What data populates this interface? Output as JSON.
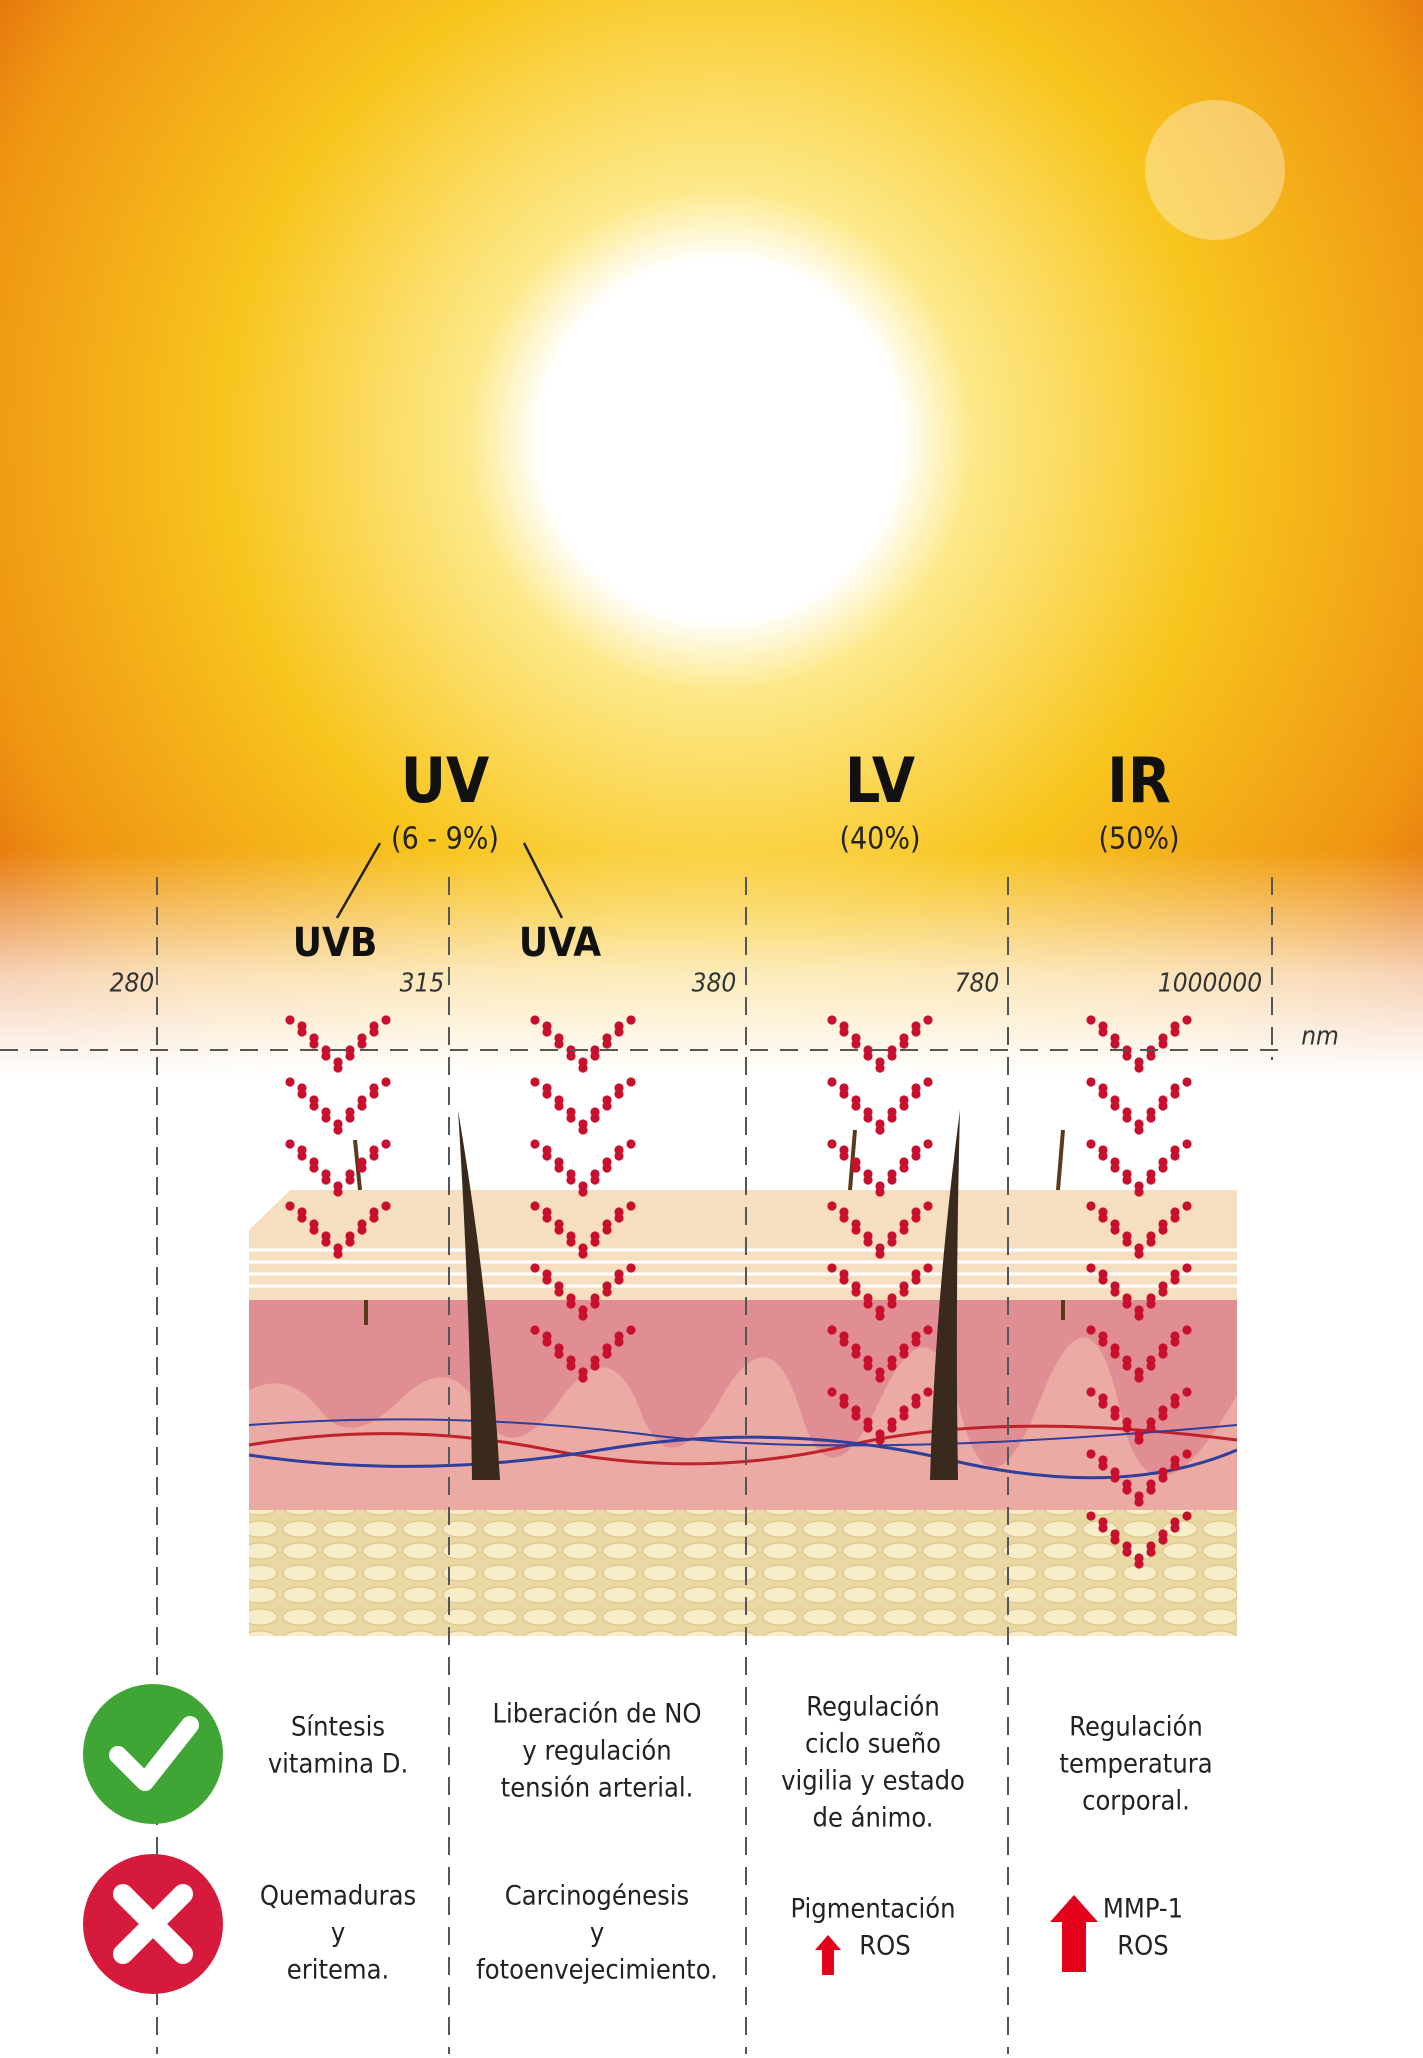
{
  "bands": [
    {
      "label": "UV",
      "share": "(6 - 9%)"
    },
    {
      "label": "LV",
      "share": "(40%)"
    },
    {
      "label": "IR",
      "share": "(50%)"
    }
  ],
  "sub_bands": [
    "UVB",
    "UVA"
  ],
  "wavelengths": [
    "280",
    "315",
    "380",
    "780",
    "1000000"
  ],
  "unit": "nm",
  "benefits": [
    {
      "lines": [
        "Síntesis",
        "vitamina D."
      ]
    },
    {
      "lines": [
        "Liberación de NO",
        "y regulación",
        "tensión  arterial."
      ]
    },
    {
      "lines": [
        "Regulación",
        "ciclo sueño",
        "vigilia y estado",
        "de ánimo."
      ]
    },
    {
      "lines": [
        "Regulación",
        "temperatura",
        "corporal."
      ]
    }
  ],
  "harms": [
    {
      "lines": [
        "Quemaduras",
        "y",
        "eritema."
      ]
    },
    {
      "lines": [
        "Carcinogénesis",
        "y",
        "fotoenvejecimiento."
      ]
    },
    {
      "lines": [
        "Pigmentación",
        "ROS"
      ]
    },
    {
      "lines": [
        "MMP-1",
        "ROS"
      ]
    }
  ]
}
